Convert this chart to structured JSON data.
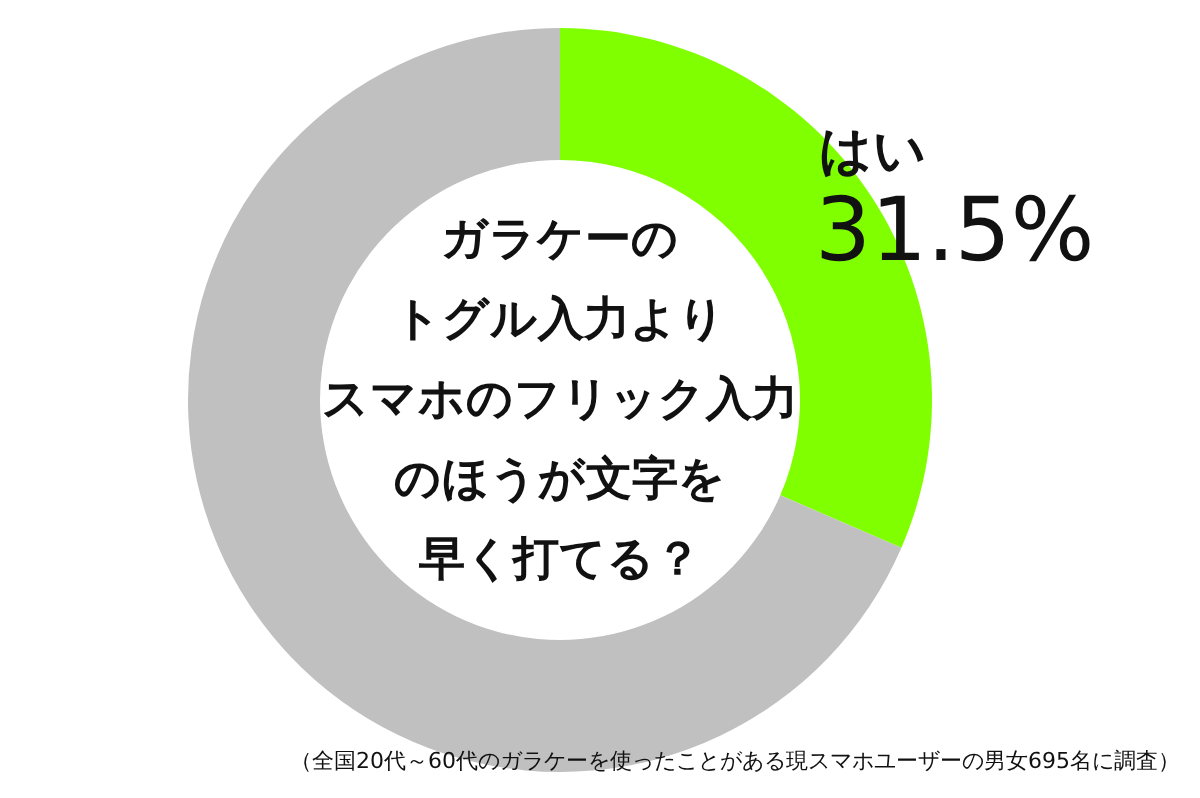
{
  "chart_data": {
    "type": "donut",
    "title": "ガラケーのトグル入力よりスマホのフリック入力のほうが文字を早く打てる？",
    "categories": [
      "はい",
      null
    ],
    "values": [
      31.5,
      68.5
    ],
    "colors": [
      "#80ff00",
      "#c0c0c0"
    ],
    "value_labels": [
      "31.5%",
      null
    ],
    "annotations": [
      "（全国20代～60代のガラケーを使ったことがある現スマホユーザーの男女695名に調査）"
    ]
  }
}
